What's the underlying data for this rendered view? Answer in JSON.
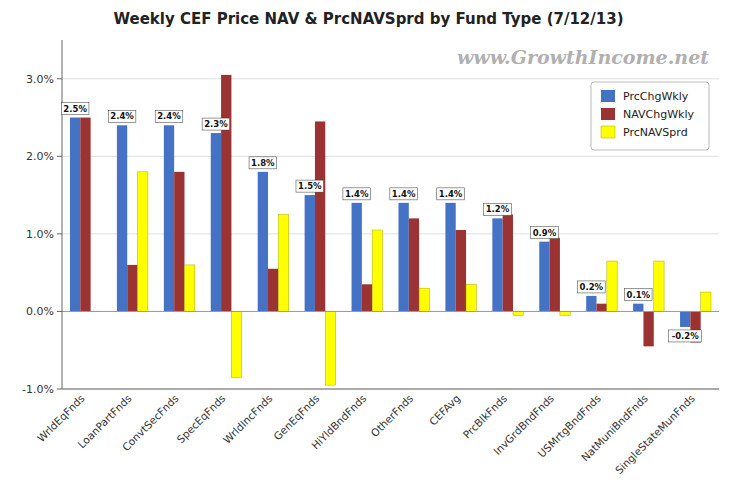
{
  "chart_data": {
    "type": "bar",
    "title": "Weekly CEF Price NAV & PrcNAVSprd by Fund Type  (7/12/13)",
    "annotations": [
      "www.GrowthIncome.net"
    ],
    "categories": [
      "WrldEqFnds",
      "LoanPartFnds",
      "ConvtSecFnds",
      "SpecEqFnds",
      "WrldIncFnds",
      "GenEqFnds",
      "HiYldBndFnds",
      "OtherFnds",
      "CEFAvg",
      "PrcBlkFnds",
      "InvGrdBndFnds",
      "USMrtgBndFnds",
      "NatMuniBndFnds",
      "SingleStateMunFnds"
    ],
    "series": [
      {
        "name": "PrcChgWkly",
        "color": "#4472C4",
        "values": [
          2.5,
          2.4,
          2.4,
          2.3,
          1.8,
          1.5,
          1.4,
          1.4,
          1.4,
          1.2,
          0.9,
          0.2,
          0.1,
          -0.2
        ],
        "value_labels": [
          "2.5%",
          "2.4%",
          "2.4%",
          "2.3%",
          "1.8%",
          "1.5%",
          "1.4%",
          "1.4%",
          "1.4%",
          "1.2%",
          "0.9%",
          "0.2%",
          "0.1%",
          "-0.2%"
        ]
      },
      {
        "name": "NAVChgWkly",
        "color": "#9B3333",
        "values": [
          2.5,
          0.6,
          1.8,
          3.05,
          0.55,
          2.45,
          0.35,
          1.2,
          1.05,
          1.25,
          0.95,
          0.1,
          -0.45,
          -0.4
        ]
      },
      {
        "name": "PrcNAVSprd",
        "color": "#FFFF00",
        "values": [
          0.0,
          1.8,
          0.6,
          -0.85,
          1.25,
          -0.95,
          1.05,
          0.3,
          0.35,
          -0.05,
          -0.05,
          0.65,
          0.65,
          0.25
        ]
      }
    ],
    "ylim": [
      -1.0,
      3.5
    ],
    "yticks": [
      {
        "value": -1.0,
        "label": "-1.0%"
      },
      {
        "value": 0.0,
        "label": "0.0%"
      },
      {
        "value": 1.0,
        "label": "1.0%"
      },
      {
        "value": 2.0,
        "label": "2.0%"
      },
      {
        "value": 3.0,
        "label": "3.0%"
      }
    ],
    "grid": true,
    "legend": "upper right",
    "data_labels": true
  }
}
